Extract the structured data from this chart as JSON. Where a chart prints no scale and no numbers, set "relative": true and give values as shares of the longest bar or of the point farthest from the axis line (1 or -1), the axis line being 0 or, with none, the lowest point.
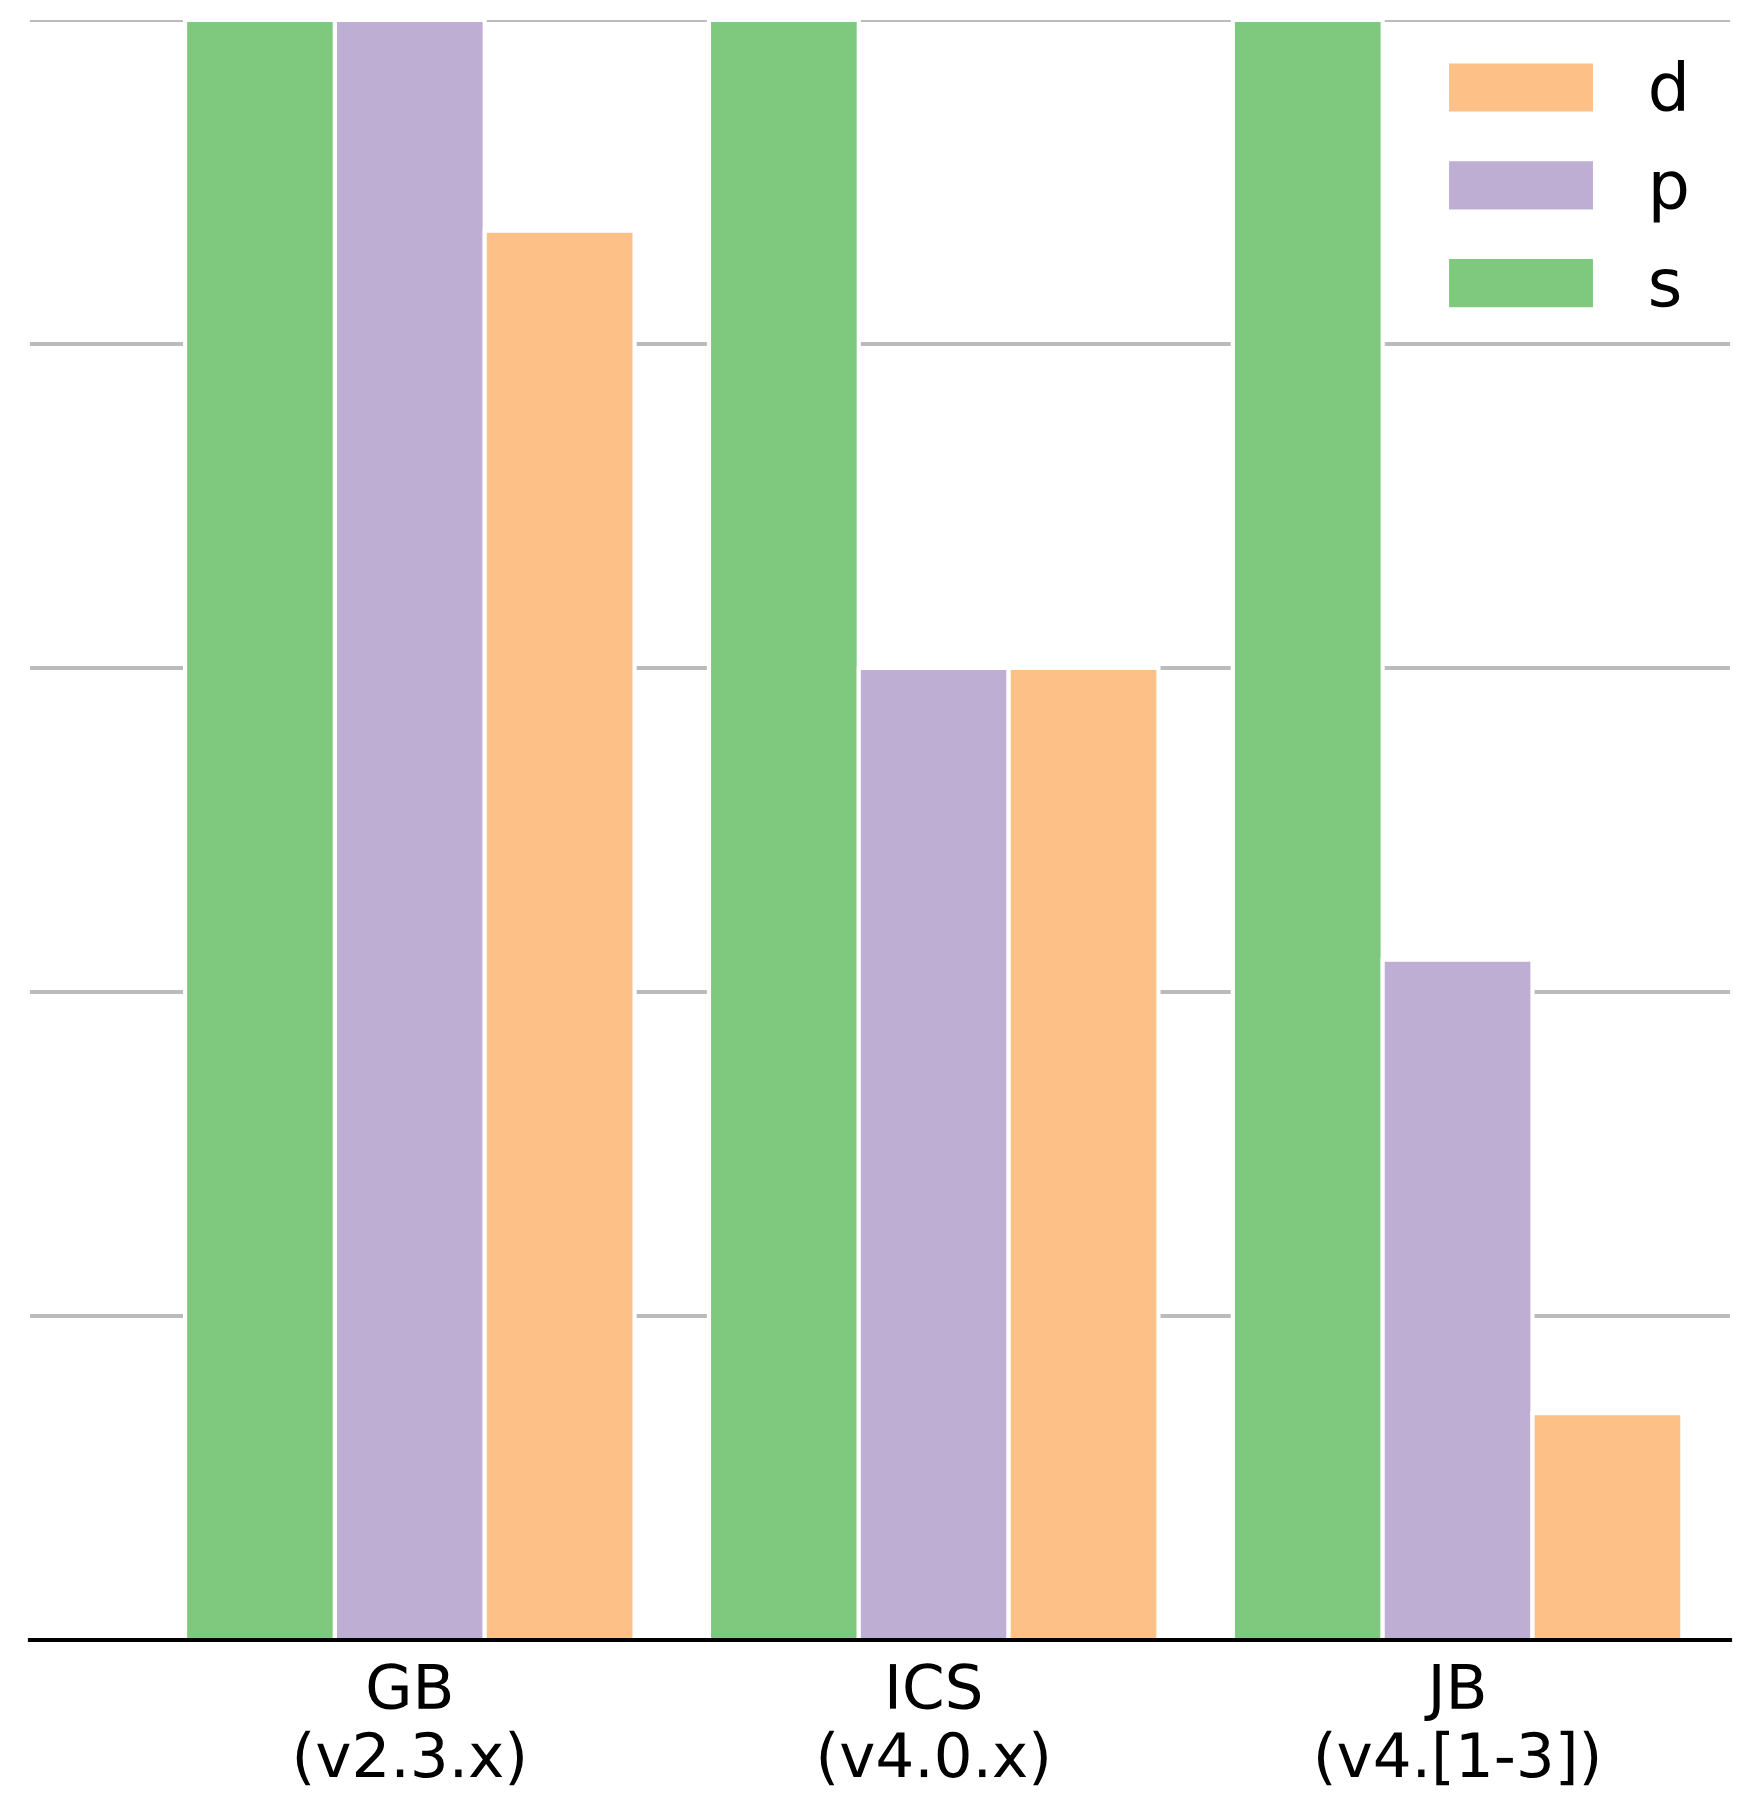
{
  "chart_data": {
    "type": "bar",
    "relative": true,
    "categories": [
      "GB\n(v2.3.x)",
      "ICS\n(v4.0.x)",
      "JB\n(v4.[1-3])"
    ],
    "series": [
      {
        "name": "s",
        "color": "#7fc97f",
        "values": [
          1,
          1,
          1
        ]
      },
      {
        "name": "p",
        "color": "#beaed4",
        "values": [
          1,
          0.6,
          0.42
        ]
      },
      {
        "name": "d",
        "color": "#fdc086",
        "values": [
          0.87,
          0.6,
          0.14
        ]
      }
    ],
    "grid": "y",
    "legend": "top right"
  }
}
